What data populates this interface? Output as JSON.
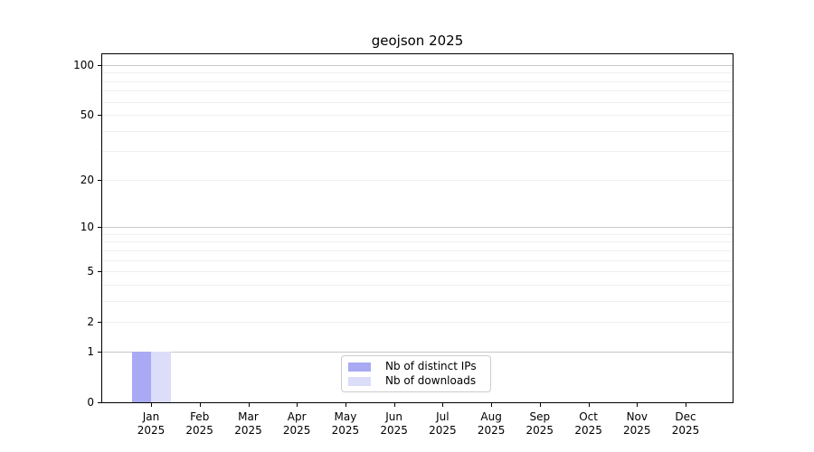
{
  "chart_data": {
    "type": "bar",
    "title": "geojson 2025",
    "year": "2025",
    "months": [
      "Jan",
      "Feb",
      "Mar",
      "Apr",
      "May",
      "Jun",
      "Jul",
      "Aug",
      "Sep",
      "Oct",
      "Nov",
      "Dec"
    ],
    "categories": [
      "Jan 2025",
      "Feb 2025",
      "Mar 2025",
      "Apr 2025",
      "May 2025",
      "Jun 2025",
      "Jul 2025",
      "Aug 2025",
      "Sep 2025",
      "Oct 2025",
      "Nov 2025",
      "Dec 2025"
    ],
    "series": [
      {
        "name": "Nb of distinct IPs",
        "color": "#a9aaf3",
        "values": [
          1,
          0,
          0,
          0,
          0,
          0,
          0,
          0,
          0,
          0,
          0,
          0
        ]
      },
      {
        "name": "Nb of downloads",
        "color": "#dcddf8",
        "values": [
          1,
          0,
          0,
          0,
          0,
          0,
          0,
          0,
          0,
          0,
          0,
          0
        ]
      }
    ],
    "yscale": "log1p",
    "ylim": [
      0,
      116
    ],
    "yticks": [
      0,
      1,
      2,
      5,
      10,
      20,
      50,
      100
    ],
    "grid": true,
    "legend_position": "lower center",
    "style": {
      "grid_major_color": "#c8c8c8",
      "grid_minor_color": "#efefef",
      "spine_color": "#000000",
      "legend_border_color": "#cccccc",
      "background": "#ffffff",
      "text_color": "#000000"
    }
  }
}
